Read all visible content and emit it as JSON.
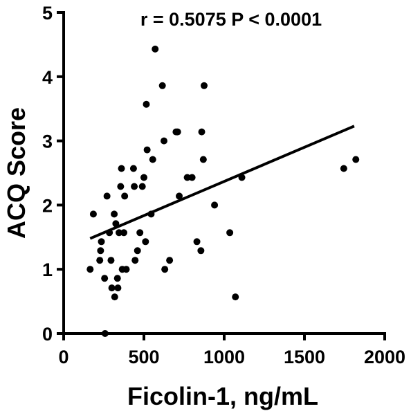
{
  "chart_data": {
    "type": "scatter",
    "annotation": "r = 0.5075  P < 0.0001",
    "xlabel": "Ficolin-1, ng/mL",
    "ylabel": "ACQ Score",
    "xlim": [
      0,
      2000
    ],
    "ylim": [
      0,
      5
    ],
    "xticks": [
      0,
      500,
      1000,
      1500,
      2000
    ],
    "yticks": [
      0,
      1,
      2,
      3,
      4,
      5
    ],
    "grid": false,
    "series": [
      {
        "points": [
          [
            165,
            1.0
          ],
          [
            185,
            1.86
          ],
          [
            225,
            1.14
          ],
          [
            230,
            1.29
          ],
          [
            235,
            1.43
          ],
          [
            255,
            0.86
          ],
          [
            258,
            0.0
          ],
          [
            270,
            2.14
          ],
          [
            285,
            1.57
          ],
          [
            295,
            1.14
          ],
          [
            300,
            0.71
          ],
          [
            315,
            1.86
          ],
          [
            318,
            0.57
          ],
          [
            325,
            1.71
          ],
          [
            335,
            0.86
          ],
          [
            338,
            0.71
          ],
          [
            345,
            1.57
          ],
          [
            355,
            2.29
          ],
          [
            360,
            2.57
          ],
          [
            365,
            1.0
          ],
          [
            375,
            1.57
          ],
          [
            380,
            2.14
          ],
          [
            390,
            1.0
          ],
          [
            435,
            2.57
          ],
          [
            440,
            2.29
          ],
          [
            445,
            1.14
          ],
          [
            460,
            1.29
          ],
          [
            475,
            1.57
          ],
          [
            490,
            2.29
          ],
          [
            500,
            2.43
          ],
          [
            510,
            1.43
          ],
          [
            515,
            3.57
          ],
          [
            520,
            2.86
          ],
          [
            545,
            1.86
          ],
          [
            555,
            2.71
          ],
          [
            570,
            4.43
          ],
          [
            615,
            3.86
          ],
          [
            625,
            3.0
          ],
          [
            630,
            1.0
          ],
          [
            660,
            1.14
          ],
          [
            700,
            3.14
          ],
          [
            710,
            3.14
          ],
          [
            720,
            2.14
          ],
          [
            770,
            2.43
          ],
          [
            800,
            2.43
          ],
          [
            830,
            1.43
          ],
          [
            855,
            1.29
          ],
          [
            860,
            3.14
          ],
          [
            870,
            2.71
          ],
          [
            875,
            3.86
          ],
          [
            940,
            2.0
          ],
          [
            1035,
            1.57
          ],
          [
            1070,
            0.57
          ],
          [
            1110,
            2.43
          ],
          [
            1745,
            2.57
          ],
          [
            1820,
            2.71
          ]
        ]
      }
    ],
    "fit_line": {
      "x": [
        165,
        1810
      ],
      "y": [
        1.48,
        3.23
      ]
    }
  }
}
